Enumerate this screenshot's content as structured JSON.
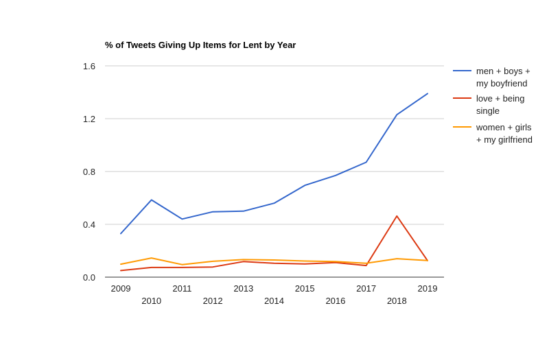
{
  "chart_data": {
    "type": "line",
    "title": "% of Tweets Giving Up Items for Lent by Year",
    "xlabel": "",
    "ylabel": "",
    "x": [
      "2009",
      "2010",
      "2011",
      "2012",
      "2013",
      "2014",
      "2015",
      "2016",
      "2017",
      "2018",
      "2019"
    ],
    "ylim": [
      0,
      1.6
    ],
    "yticks": [
      "0.0",
      "0.4",
      "0.8",
      "1.2",
      "1.6"
    ],
    "grid": true,
    "legend_position": "right",
    "series": [
      {
        "name": "men + boys + my boyfriend",
        "legend_lines": [
          "men + boys +",
          "my boyfriend"
        ],
        "color": "#3366cc",
        "values": [
          0.33,
          0.585,
          0.44,
          0.495,
          0.5,
          0.56,
          0.695,
          0.77,
          0.87,
          1.23,
          1.39
        ]
      },
      {
        "name": "love + being single",
        "legend_lines": [
          "love + being",
          "single"
        ],
        "color": "#dc3912",
        "values": [
          0.05,
          0.073,
          0.073,
          0.077,
          0.118,
          0.105,
          0.1,
          0.11,
          0.088,
          0.463,
          0.125
        ]
      },
      {
        "name": "women + girls + my girlfriend",
        "legend_lines": [
          "women + girls",
          "+ my girlfriend"
        ],
        "color": "#ff9900",
        "values": [
          0.098,
          0.145,
          0.095,
          0.12,
          0.133,
          0.13,
          0.122,
          0.118,
          0.105,
          0.14,
          0.126
        ]
      }
    ]
  }
}
